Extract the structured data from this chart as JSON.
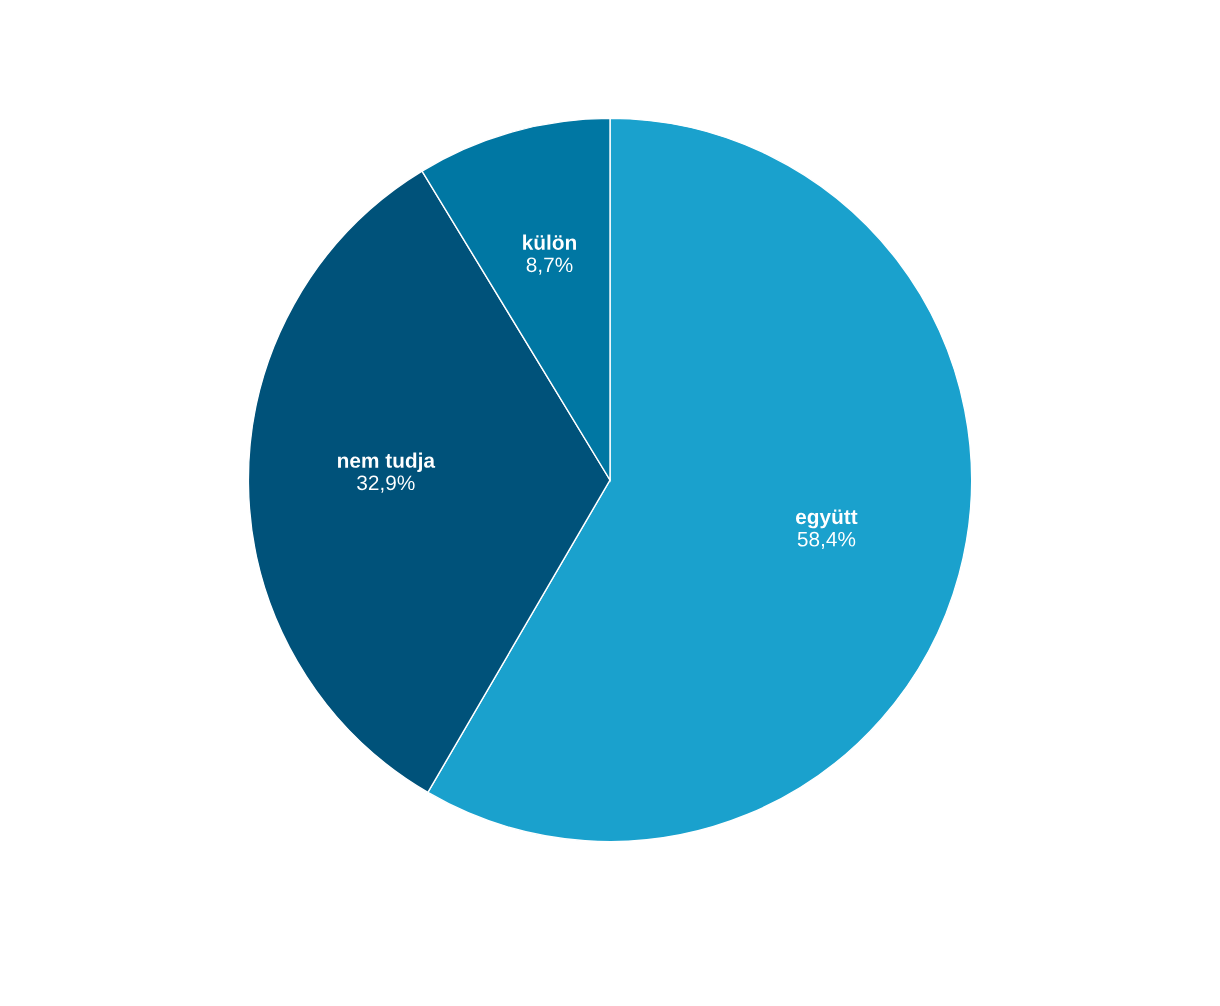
{
  "chart_data": {
    "type": "pie",
    "categories": [
      "együtt",
      "nem tudja",
      "külön"
    ],
    "values": [
      58.4,
      32.9,
      8.7
    ],
    "value_labels": [
      "58,4%",
      "32,9%",
      "8,7%"
    ],
    "colors": [
      "#1aa1cd",
      "#00527a",
      "#0077a3"
    ]
  }
}
